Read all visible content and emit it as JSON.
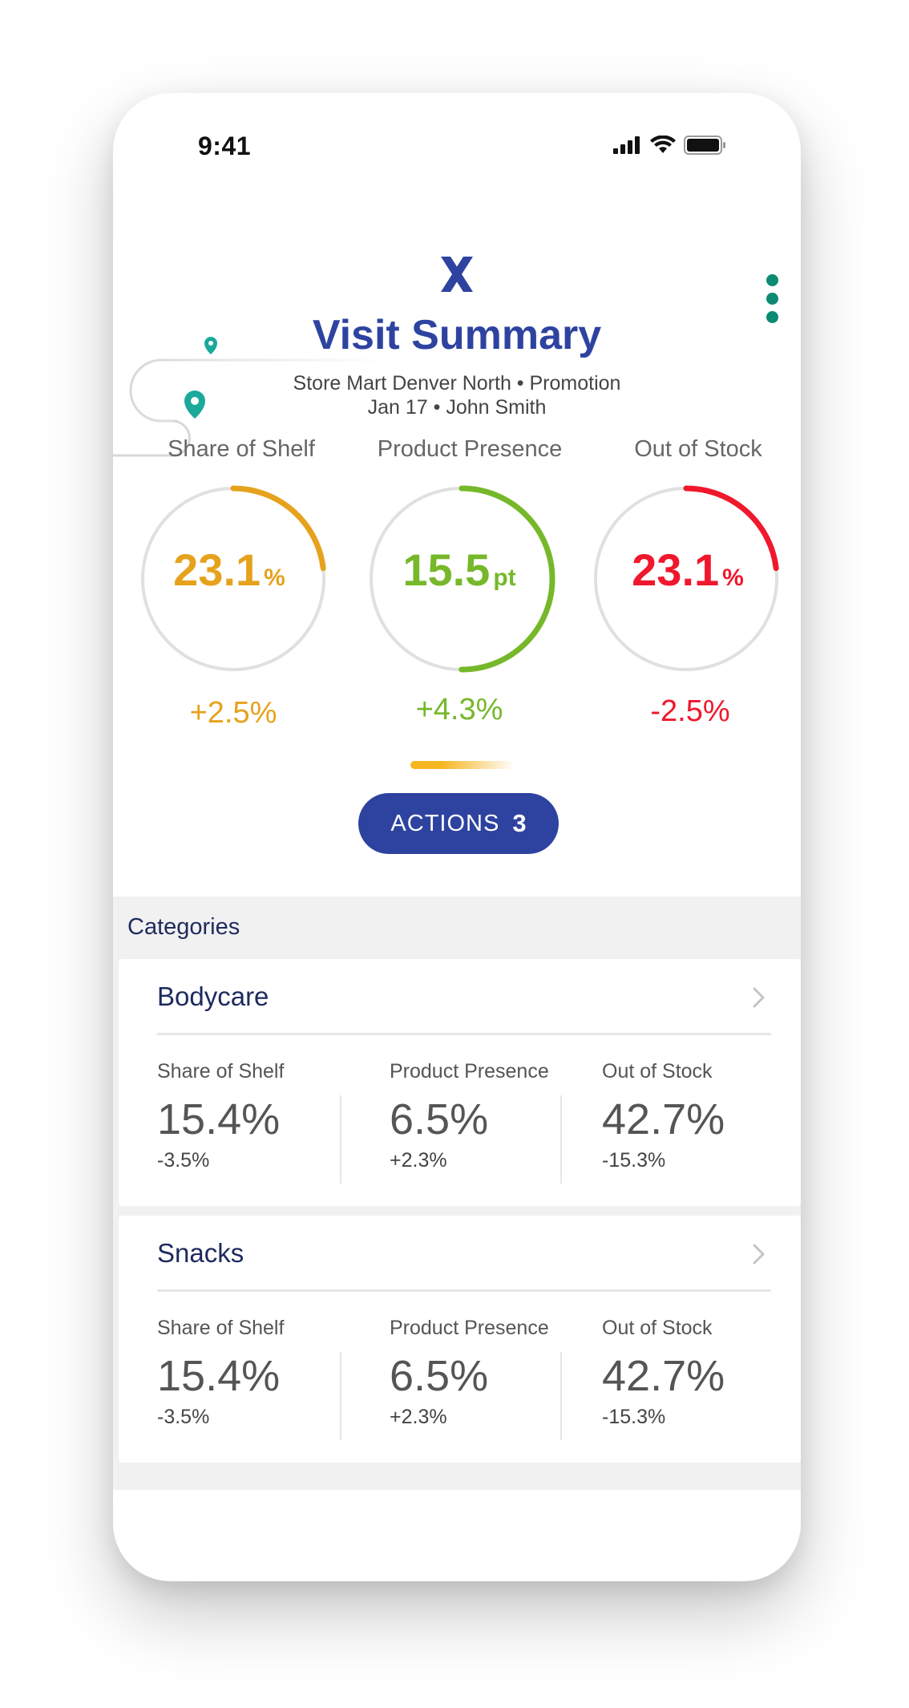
{
  "status": {
    "time": "9:41"
  },
  "header": {
    "title": "Visit Summary",
    "subtitle_line1": "Store Mart Denver North •  Promotion",
    "subtitle_line2": "Jan 17  •  John Smith"
  },
  "kpis": [
    {
      "label": "Share of Shelf",
      "value": "23.1",
      "unit": "%",
      "delta": "+2.5%",
      "color": "#e6a21d",
      "progress": 0.231
    },
    {
      "label": "Product Presence",
      "value": "15.5",
      "unit": "pt",
      "delta": "+4.3%",
      "color": "#76b82a",
      "progress": 0.5
    },
    {
      "label": "Out of Stock",
      "value": "23.1",
      "unit": "%",
      "delta": "-2.5%",
      "color": "#f0182c",
      "progress": 0.231
    }
  ],
  "actions": {
    "label": "ACTIONS",
    "count": "3"
  },
  "categories": {
    "header": "Categories",
    "items": [
      {
        "name": "Bodycare",
        "metrics": [
          {
            "label": "Share of Shelf",
            "value": "15.4%",
            "delta": "-3.5%"
          },
          {
            "label": "Product Presence",
            "value": "6.5%",
            "delta": "+2.3%"
          },
          {
            "label": "Out of Stock",
            "value": "42.7%",
            "delta": "-15.3%"
          }
        ]
      },
      {
        "name": "Snacks",
        "metrics": [
          {
            "label": "Share of Shelf",
            "value": "15.4%",
            "delta": "-3.5%"
          },
          {
            "label": "Product Presence",
            "value": "6.5%",
            "delta": "+2.3%"
          },
          {
            "label": "Out of Stock",
            "value": "42.7%",
            "delta": "-15.3%"
          }
        ]
      }
    ]
  },
  "colors": {
    "brand": "#2e43a0",
    "accent_green": "#0c8a72"
  },
  "icons": [
    "signal-icon",
    "wifi-icon",
    "battery-icon",
    "map-pin-icon",
    "logo-x-icon",
    "more-vertical-icon",
    "chevron-right-icon"
  ]
}
